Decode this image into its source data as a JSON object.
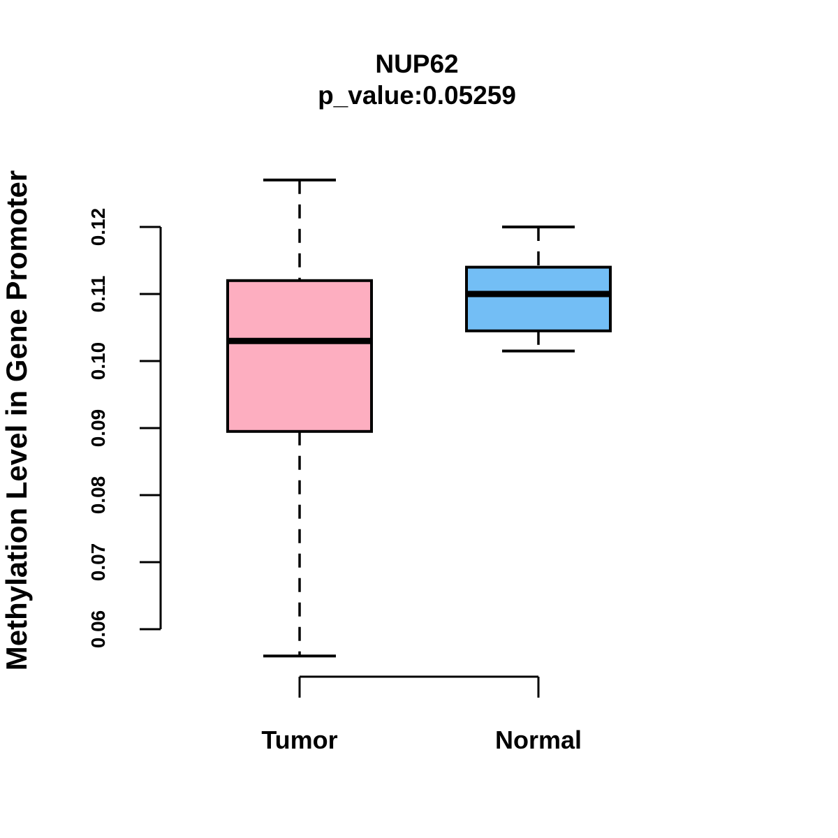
{
  "chart_data": {
    "type": "boxplot",
    "title": "NUP62",
    "subtitle": "p_value:0.05259",
    "ylabel": "Methylation Level in Gene Promoter",
    "xlabel": "",
    "categories": [
      "Tumor",
      "Normal"
    ],
    "ylim": [
      0.06,
      0.12
    ],
    "ytick_labels": [
      "0.06",
      "0.07",
      "0.08",
      "0.09",
      "0.10",
      "0.11",
      "0.12"
    ],
    "grid": false,
    "legend_position": "none",
    "series": [
      {
        "name": "Tumor",
        "fill": "#FDAEC0",
        "whisker_low": 0.056,
        "q1": 0.0895,
        "median": 0.103,
        "q3": 0.112,
        "whisker_high": 0.127
      },
      {
        "name": "Normal",
        "fill": "#73BEF5",
        "whisker_low": 0.1015,
        "q1": 0.1045,
        "median": 0.11,
        "q3": 0.114,
        "whisker_high": 0.12
      }
    ],
    "colors": {
      "stroke": "#000000",
      "background": "#FFFFFF"
    }
  }
}
